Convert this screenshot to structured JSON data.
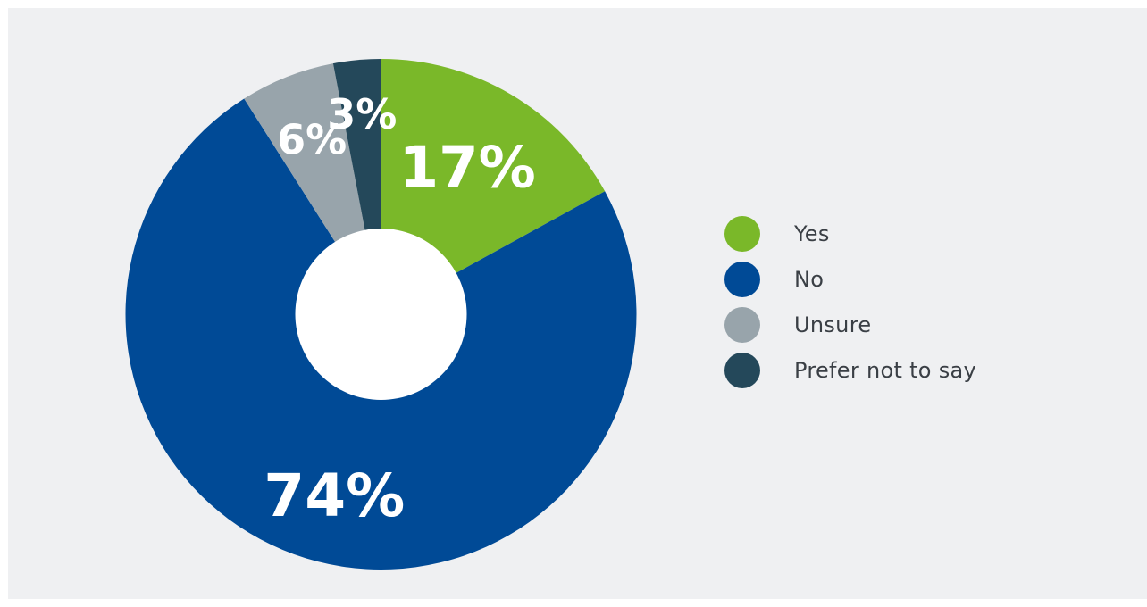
{
  "chart_data": {
    "type": "pie",
    "donut": true,
    "slices": [
      {
        "label": "Yes",
        "value": 17,
        "display": "17%",
        "color": "#7ab829"
      },
      {
        "label": "No",
        "value": 74,
        "display": "74%",
        "color": "#004a96"
      },
      {
        "label": "Unsure",
        "value": 6,
        "display": "6%",
        "color": "#98a4ab"
      },
      {
        "label": "Prefer not to say",
        "value": 3,
        "display": "3%",
        "color": "#24485a"
      }
    ],
    "legend_position": "right",
    "background": "#eff0f2",
    "hole_color": "#ffffff"
  }
}
